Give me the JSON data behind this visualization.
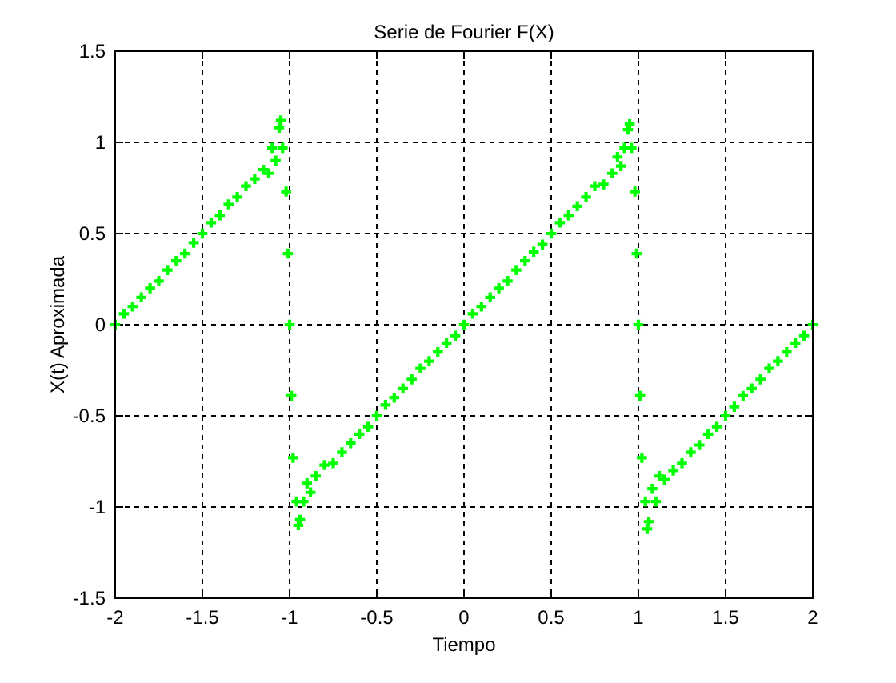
{
  "chart_data": {
    "type": "scatter",
    "title": "Serie de Fourier F(X)",
    "xlabel": "Tiempo",
    "ylabel": "X(t) Aproximada",
    "xlim": [
      -2,
      2
    ],
    "ylim": [
      -1.5,
      1.5
    ],
    "xticks": [
      -2,
      -1.5,
      -1,
      -0.5,
      0,
      0.5,
      1,
      1.5,
      2
    ],
    "yticks": [
      -1.5,
      -1,
      -0.5,
      0,
      0.5,
      1,
      1.5
    ],
    "grid": true,
    "marker": "cross",
    "series": [
      {
        "color": "#00ff00",
        "x": [
          -2,
          -1.95,
          -1.9,
          -1.85,
          -1.8,
          -1.75,
          -1.7,
          -1.65,
          -1.6,
          -1.55,
          -1.5,
          -1.45,
          -1.4,
          -1.35,
          -1.3,
          -1.25,
          -1.2,
          -1.15,
          -1.12,
          -1.1,
          -1.08,
          -1.06,
          -1.05,
          -1.04,
          -1.02,
          -1.01,
          -1,
          -0.99,
          -0.98,
          -0.96,
          -0.95,
          -0.94,
          -0.92,
          -0.9,
          -0.88,
          -0.85,
          -0.8,
          -0.75,
          -0.7,
          -0.65,
          -0.6,
          -0.55,
          -0.5,
          -0.45,
          -0.4,
          -0.35,
          -0.3,
          -0.25,
          -0.2,
          -0.15,
          -0.1,
          -0.05,
          0,
          0.05,
          0.1,
          0.15,
          0.2,
          0.25,
          0.3,
          0.35,
          0.4,
          0.45,
          0.5,
          0.55,
          0.6,
          0.65,
          0.7,
          0.75,
          0.8,
          0.85,
          0.88,
          0.9,
          0.92,
          0.94,
          0.95,
          0.96,
          0.98,
          0.99,
          1,
          1.01,
          1.02,
          1.04,
          1.05,
          1.06,
          1.08,
          1.1,
          1.12,
          1.15,
          1.2,
          1.25,
          1.3,
          1.35,
          1.4,
          1.45,
          1.5,
          1.55,
          1.6,
          1.65,
          1.7,
          1.75,
          1.8,
          1.85,
          1.9,
          1.95,
          2
        ],
        "values": [
          0,
          0.06,
          0.1,
          0.15,
          0.2,
          0.24,
          0.3,
          0.35,
          0.39,
          0.45,
          0.5,
          0.56,
          0.6,
          0.66,
          0.7,
          0.76,
          0.8,
          0.85,
          0.83,
          0.97,
          0.9,
          1.08,
          1.12,
          0.97,
          0.73,
          0.39,
          0,
          -0.39,
          -0.73,
          -0.97,
          -1.1,
          -1.07,
          -0.97,
          -0.87,
          -0.92,
          -0.83,
          -0.77,
          -0.76,
          -0.7,
          -0.65,
          -0.6,
          -0.56,
          -0.5,
          -0.44,
          -0.4,
          -0.35,
          -0.3,
          -0.24,
          -0.2,
          -0.15,
          -0.1,
          -0.06,
          0,
          0.06,
          0.1,
          0.15,
          0.2,
          0.24,
          0.3,
          0.35,
          0.4,
          0.44,
          0.5,
          0.56,
          0.6,
          0.65,
          0.7,
          0.76,
          0.77,
          0.83,
          0.92,
          0.87,
          0.97,
          1.07,
          1.1,
          0.97,
          0.73,
          0.39,
          0,
          -0.39,
          -0.73,
          -0.97,
          -1.12,
          -1.08,
          -0.9,
          -0.97,
          -0.83,
          -0.85,
          -0.8,
          -0.76,
          -0.7,
          -0.66,
          -0.6,
          -0.56,
          -0.5,
          -0.45,
          -0.39,
          -0.35,
          -0.3,
          -0.24,
          -0.2,
          -0.15,
          -0.1,
          -0.06,
          0
        ]
      }
    ]
  }
}
